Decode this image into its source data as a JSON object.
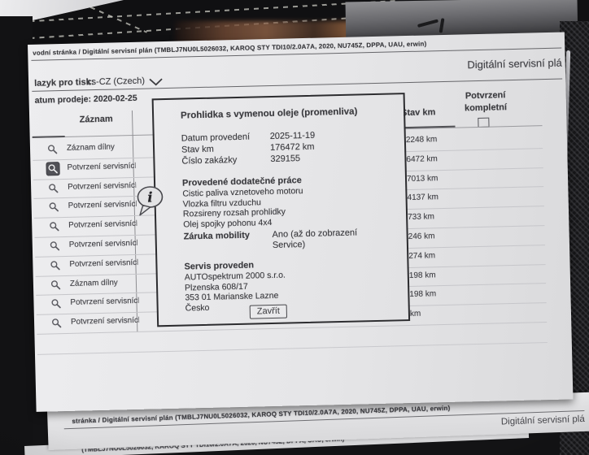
{
  "header": {
    "breadcrumb": "vodní stránka / Digitální servisní plán (TMBLJ7NU0L5026032, KAROQ STY TDI10/2.0A7A, 2020, NU745Z, DPPA, UAU, erwin)",
    "page_title": "Digitální servisní plá",
    "language_label": "lazyk pro tisk:",
    "language_value": "cs-CZ (Czech)",
    "sale_date_label": "atum prodeje:",
    "sale_date_value": "2020-02-25"
  },
  "table": {
    "record_header": "Záznam",
    "km_header": "Stav km",
    "confirm_header_line1": "Potvrzení",
    "confirm_header_line2": "kompletní",
    "rows": [
      {
        "label": "Záznam dílny",
        "km": "2248 km",
        "selected": false
      },
      {
        "label": "Potvrzení servisních",
        "km": "6472 km",
        "selected": true
      },
      {
        "label": "Potvrzení servisních",
        "km": "7013 km",
        "selected": false
      },
      {
        "label": "Potvrzení servisních",
        "km": "4137 km",
        "selected": false
      },
      {
        "label": "Potvrzení servisních",
        "km": "733 km",
        "selected": false
      },
      {
        "label": "Potvrzení servisních",
        "km": "246 km",
        "selected": false
      },
      {
        "label": "Potvrzení servisních",
        "km": "274 km",
        "selected": false
      },
      {
        "label": "Záznam dílny",
        "km": "198 km",
        "selected": false
      },
      {
        "label": "Potvrzení servisních",
        "km": "198 km",
        "selected": false
      },
      {
        "label": "Potvrzení servisních",
        "km": "km",
        "selected": false
      }
    ]
  },
  "dialog": {
    "title": "Prohlidka s vymenou oleje (promenliva)",
    "fields": [
      {
        "label": "Datum provedení",
        "value": "2025-11-19"
      },
      {
        "label": "Stav km",
        "value": "176472 km"
      },
      {
        "label": "Číslo zakázky",
        "value": "329155"
      }
    ],
    "extra_work_title": "Provedené dodatečné práce",
    "extra_work_items": [
      "Cistic paliva vznetoveho motoru",
      "Vlozka filtru vzduchu",
      "Rozsireny rozsah prohlidky",
      "Olej spojky pohonu 4x4"
    ],
    "mobility_label": "Záruka mobility",
    "mobility_value": "Ano (až do zobrazení Service)",
    "service_title": "Servis proveden",
    "service_lines": [
      "AUTOspektrum 2000 s.r.o.",
      "Plzenska 608/17",
      "353 01 Marianske Lazne",
      "Česko"
    ],
    "close_button": "Zavřít"
  },
  "stacked_sheets": {
    "line": "stránka / Digitální servisní plán (TMBLJ7NU0L5026032, KAROQ STY TDI10/2.0A7A, 2020, NU745Z, DPPA, UAU, erwin)",
    "title": "Digitální servisní plá",
    "line2": "(TMBLJ7NU0L5026032, KAROQ STY TDI10/2.0A7A, 2020, NU745Z, DPPA, UAU, erwin)"
  },
  "colors": {
    "paper": "#e7e7e9",
    "ink": "#3a3a3e",
    "dialog_border": "#2c2c2f",
    "background": "#131315"
  }
}
